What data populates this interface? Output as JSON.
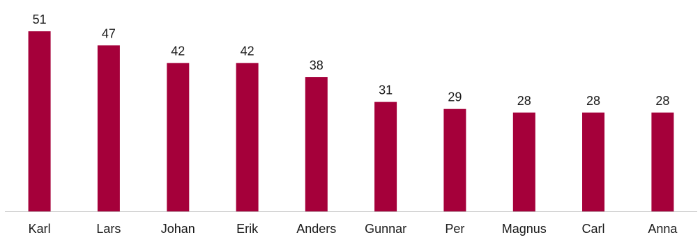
{
  "chart_data": {
    "type": "bar",
    "title": "",
    "xlabel": "",
    "ylabel": "",
    "categories": [
      "Karl",
      "Lars",
      "Johan",
      "Erik",
      "Anders",
      "Gunnar",
      "Per",
      "Magnus",
      "Carl",
      "Anna"
    ],
    "values": [
      51,
      47,
      42,
      42,
      38,
      31,
      29,
      28,
      28,
      28
    ],
    "ylim": [
      0,
      51
    ],
    "grid": false,
    "legend": "none",
    "data_labels": true,
    "bar_color": "#A5003A",
    "axis_color": "#BFBFBF"
  }
}
